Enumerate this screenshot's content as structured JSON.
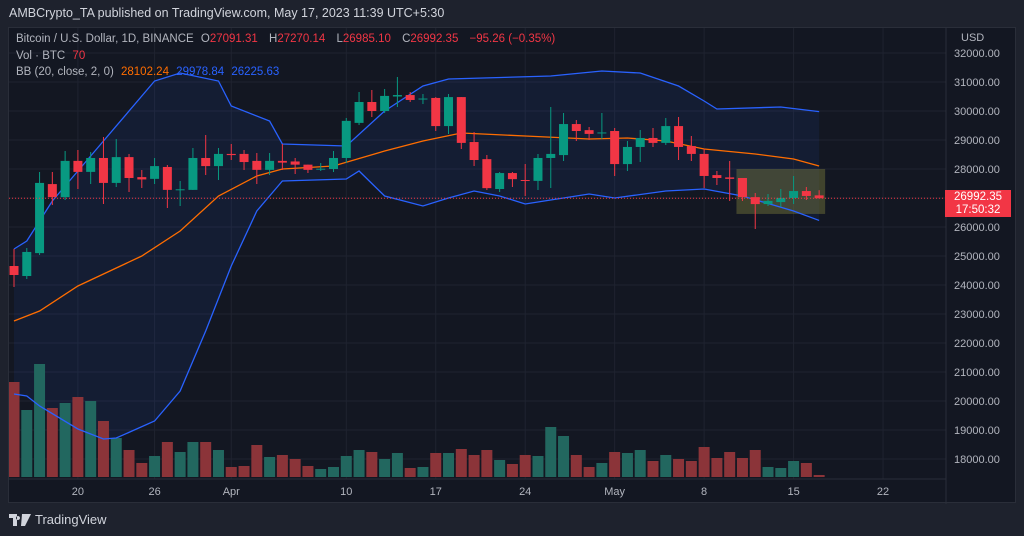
{
  "header": {
    "published": "AMBCrypto_TA published on TradingView.com, May 17, 2023 11:39 UTC+5:30"
  },
  "legend": {
    "symbol": "Bitcoin / U.S. Dollar, 1D, BINANCE",
    "o_label": "O",
    "o": "27091.31",
    "h_label": "H",
    "h": "27270.14",
    "l_label": "L",
    "l": "26985.10",
    "c_label": "C",
    "c": "26992.35",
    "change": "−95.26 (−0.35%)",
    "vol_label": "Vol · BTC",
    "vol": "70",
    "bb_label": "BB (20, close, 2, 0)",
    "bb_basis": "28102.24",
    "bb_upper": "29978.84",
    "bb_lower": "26225.63"
  },
  "axis": {
    "currency": "USD",
    "last_price": "26992.35",
    "countdown": "17:50:32"
  },
  "footer": {
    "brand": "TradingView"
  },
  "colors": {
    "up": "#089981",
    "down": "#f23645",
    "vol_up": "#22675f",
    "vol_down": "#8b3439",
    "basis": "#ff6d00",
    "band": "#2962ff",
    "bg": "#131722"
  },
  "chart_data": {
    "type": "candlestick",
    "first_date": "Mar 15",
    "ylim": [
      17500,
      32500
    ],
    "y_ticks": [
      32000,
      31000,
      30000,
      29000,
      28000,
      27000,
      26000,
      25000,
      24000,
      23000,
      22000,
      21000,
      20000,
      19000,
      18000
    ],
    "x_ticks": [
      {
        "label": "20",
        "index": 5
      },
      {
        "label": "26",
        "index": 11
      },
      {
        "label": "Apr",
        "index": 17
      },
      {
        "label": "10",
        "index": 26
      },
      {
        "label": "17",
        "index": 33
      },
      {
        "label": "24",
        "index": 40
      },
      {
        "label": "May",
        "index": 47
      },
      {
        "label": "8",
        "index": 54
      },
      {
        "label": "15",
        "index": 61
      },
      {
        "label": "22",
        "index": 68
      }
    ],
    "ohlc": [
      [
        24655,
        25241,
        23931,
        24345
      ],
      [
        24310,
        25276,
        24207,
        25140
      ],
      [
        25100,
        27897,
        25034,
        27520
      ],
      [
        27480,
        27897,
        26759,
        27030
      ],
      [
        27030,
        28621,
        26931,
        28280
      ],
      [
        28280,
        28655,
        27310,
        27900
      ],
      [
        27900,
        28586,
        27483,
        28380
      ],
      [
        28380,
        29103,
        26793,
        27520
      ],
      [
        27520,
        29034,
        27379,
        28410
      ],
      [
        28410,
        28517,
        27207,
        27690
      ],
      [
        27720,
        27966,
        27345,
        27640
      ],
      [
        27660,
        28379,
        27483,
        28100
      ],
      [
        28070,
        28138,
        26655,
        27280
      ],
      [
        27280,
        27586,
        26724,
        27300
      ],
      [
        27280,
        28724,
        27276,
        28380
      ],
      [
        28380,
        29172,
        27793,
        28100
      ],
      [
        28100,
        28724,
        27621,
        28520
      ],
      [
        28520,
        28862,
        28310,
        28480
      ],
      [
        28520,
        28655,
        27966,
        28240
      ],
      [
        28280,
        28552,
        27483,
        27970
      ],
      [
        27970,
        28552,
        27793,
        28280
      ],
      [
        28280,
        28862,
        27966,
        28220
      ],
      [
        28260,
        28379,
        27828,
        28150
      ],
      [
        28150,
        28150,
        27862,
        27970
      ],
      [
        28000,
        28207,
        27931,
        28010
      ],
      [
        28000,
        28621,
        27897,
        28380
      ],
      [
        28380,
        29759,
        28207,
        29660
      ],
      [
        29590,
        30655,
        29517,
        30310
      ],
      [
        30310,
        30724,
        29793,
        30000
      ],
      [
        30000,
        30759,
        29931,
        30520
      ],
      [
        30500,
        31172,
        30138,
        30550
      ],
      [
        30550,
        30655,
        30310,
        30380
      ],
      [
        30400,
        30586,
        30240,
        30430
      ],
      [
        30450,
        30480,
        29310,
        29480
      ],
      [
        29480,
        30586,
        29207,
        30480
      ],
      [
        30480,
        30483,
        28690,
        28900
      ],
      [
        28930,
        29276,
        28103,
        28310
      ],
      [
        28340,
        28483,
        27276,
        27340
      ],
      [
        27310,
        27897,
        27207,
        27860
      ],
      [
        27860,
        27897,
        27379,
        27650
      ],
      [
        27620,
        28172,
        27069,
        27590
      ],
      [
        27590,
        28517,
        27276,
        28380
      ],
      [
        28380,
        30138,
        27345,
        28520
      ],
      [
        28480,
        29931,
        28276,
        29550
      ],
      [
        29550,
        29690,
        28966,
        29310
      ],
      [
        29340,
        29448,
        29000,
        29210
      ],
      [
        29230,
        29931,
        29034,
        29260
      ],
      [
        29310,
        29414,
        27759,
        28170
      ],
      [
        28170,
        28966,
        27931,
        28760
      ],
      [
        28760,
        29345,
        28241,
        29070
      ],
      [
        29070,
        29414,
        28759,
        28900
      ],
      [
        28900,
        29759,
        28828,
        29480
      ],
      [
        29480,
        29793,
        28310,
        28760
      ],
      [
        28790,
        29138,
        28276,
        28520
      ],
      [
        28520,
        28690,
        27345,
        27760
      ],
      [
        27790,
        27931,
        27448,
        27690
      ],
      [
        27710,
        28276,
        26897,
        27660
      ],
      [
        27690,
        27690,
        26897,
        27030
      ],
      [
        27030,
        27172,
        25931,
        26790
      ],
      [
        26790,
        27138,
        26724,
        26900
      ],
      [
        26860,
        27310,
        26690,
        27000
      ],
      [
        27000,
        27759,
        26793,
        27240
      ],
      [
        27240,
        27379,
        26931,
        27070
      ],
      [
        27091,
        27270,
        26985,
        26992
      ]
    ],
    "volume_relative": [
      95,
      67,
      113,
      69,
      74,
      80,
      76,
      56,
      39,
      27,
      14,
      21,
      35,
      25,
      35,
      35,
      27,
      10,
      11,
      32,
      20,
      22,
      18,
      11,
      8,
      10,
      21,
      27,
      25,
      18,
      24,
      9,
      10,
      24,
      24,
      28,
      22,
      27,
      17,
      13,
      22,
      21,
      50,
      41,
      22,
      10,
      14,
      25,
      24,
      27,
      16,
      22,
      18,
      16,
      30,
      19,
      25,
      19,
      27,
      10,
      9,
      16,
      14,
      2
    ],
    "bb_upper": [
      [
        0,
        25241
      ],
      [
        1,
        25517
      ],
      [
        3,
        26897
      ],
      [
        7,
        28966
      ],
      [
        11,
        31034
      ],
      [
        13,
        31310
      ],
      [
        16,
        31034
      ],
      [
        17,
        30172
      ],
      [
        20,
        29655
      ],
      [
        21,
        28862
      ],
      [
        26,
        28793
      ],
      [
        29,
        30000
      ],
      [
        32,
        30862
      ],
      [
        34,
        31103
      ],
      [
        42,
        31207
      ],
      [
        46,
        31379
      ],
      [
        49,
        31310
      ],
      [
        52,
        30862
      ],
      [
        54,
        30345
      ],
      [
        55,
        30069
      ],
      [
        60,
        30138
      ],
      [
        63,
        29979
      ]
    ],
    "bb_basis": [
      [
        0,
        22759
      ],
      [
        2,
        23103
      ],
      [
        5,
        23966
      ],
      [
        10,
        25000
      ],
      [
        13,
        25862
      ],
      [
        16,
        27069
      ],
      [
        19,
        27759
      ],
      [
        21,
        28000
      ],
      [
        25,
        28103
      ],
      [
        29,
        28621
      ],
      [
        32,
        28966
      ],
      [
        35,
        29241
      ],
      [
        40,
        29138
      ],
      [
        45,
        29034
      ],
      [
        48,
        29069
      ],
      [
        51,
        28966
      ],
      [
        54,
        28690
      ],
      [
        58,
        28517
      ],
      [
        61,
        28345
      ],
      [
        63,
        28102
      ]
    ],
    "bb_lower": [
      [
        0,
        20242
      ],
      [
        1,
        20173
      ],
      [
        2,
        19828
      ],
      [
        5,
        19035
      ],
      [
        7,
        18690
      ],
      [
        8,
        18724
      ],
      [
        11,
        19310
      ],
      [
        13,
        20345
      ],
      [
        15,
        22414
      ],
      [
        17,
        24655
      ],
      [
        19,
        26552
      ],
      [
        21,
        27586
      ],
      [
        26,
        27655
      ],
      [
        27,
        27931
      ],
      [
        29,
        27069
      ],
      [
        32,
        26724
      ],
      [
        34,
        27000
      ],
      [
        36,
        27241
      ],
      [
        38,
        27069
      ],
      [
        40,
        26793
      ],
      [
        43,
        27000
      ],
      [
        45,
        27138
      ],
      [
        47,
        27000
      ],
      [
        51,
        27241
      ],
      [
        54,
        27310
      ],
      [
        57,
        27069
      ],
      [
        61,
        26552
      ],
      [
        63,
        26226
      ]
    ],
    "highlight_box": {
      "from_index": 57,
      "to_index": 63,
      "price_top": 28000,
      "price_bottom": 26450
    }
  }
}
